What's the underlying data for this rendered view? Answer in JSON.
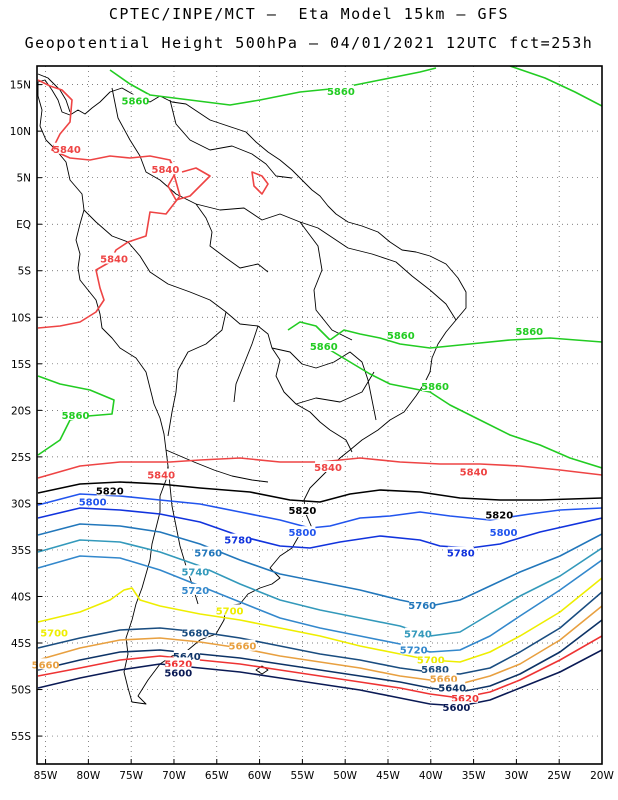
{
  "header": {
    "line1": "CPTEC/INPE/MCT –  Eta Model 15km – GFS",
    "line2": "Geopotential Height 500hPa – 04/01/2021 12UTC fct=253h"
  },
  "map": {
    "lon_range": [
      -86,
      -20
    ],
    "lat_range": [
      -58,
      17
    ],
    "lat_ticks": [
      "15N",
      "10N",
      "5N",
      "EQ",
      "5S",
      "10S",
      "15S",
      "20S",
      "25S",
      "30S",
      "35S",
      "40S",
      "45S",
      "50S",
      "55S"
    ],
    "lon_ticks": [
      "85W",
      "80W",
      "75W",
      "70W",
      "65W",
      "60W",
      "55W",
      "50W",
      "45W",
      "40W",
      "35W",
      "30W",
      "25W",
      "20W"
    ],
    "grid": "dotted",
    "contour_colors": {
      "5860": "#22cc22",
      "5840": "#ee4444",
      "5820": "#000000",
      "5800": "#2255ee",
      "5780": "#1133dd",
      "5760": "#2277bb",
      "5740": "#3399bb",
      "5720": "#3388cc",
      "5700": "#eeee00",
      "5680": "#1a4d80",
      "5660": "#e8a040",
      "5640": "#0d3366",
      "5620": "#ee3333",
      "5600": "#0a1a55"
    },
    "contour_labels": [
      {
        "text": "5860",
        "lon": -74.5,
        "lat": 13.2,
        "level": "5860"
      },
      {
        "text": "5860",
        "lon": -50.5,
        "lat": 14.2,
        "level": "5860"
      },
      {
        "text": "5860",
        "lon": -52.5,
        "lat": -13.2,
        "level": "5860"
      },
      {
        "text": "5860",
        "lon": -43.5,
        "lat": -12.0,
        "level": "5860"
      },
      {
        "text": "5860",
        "lon": -28.5,
        "lat": -11.6,
        "level": "5860"
      },
      {
        "text": "5860",
        "lon": -39.5,
        "lat": -17.5,
        "level": "5860"
      },
      {
        "text": "5860",
        "lon": -81.5,
        "lat": -20.6,
        "level": "5860"
      },
      {
        "text": "5840",
        "lon": -82.5,
        "lat": 8.0,
        "level": "5840"
      },
      {
        "text": "5840",
        "lon": -71.0,
        "lat": 5.8,
        "level": "5840"
      },
      {
        "text": "5840",
        "lon": -77.0,
        "lat": -3.8,
        "level": "5840"
      },
      {
        "text": "5840",
        "lon": -71.5,
        "lat": -27.0,
        "level": "5840"
      },
      {
        "text": "5840",
        "lon": -52.0,
        "lat": -26.2,
        "level": "5840"
      },
      {
        "text": "5840",
        "lon": -35.0,
        "lat": -26.7,
        "level": "5840"
      },
      {
        "text": "5820",
        "lon": -77.5,
        "lat": -28.7,
        "level": "5820"
      },
      {
        "text": "5820",
        "lon": -55.0,
        "lat": -30.8,
        "level": "5820"
      },
      {
        "text": "5820",
        "lon": -32.0,
        "lat": -31.3,
        "level": "5820"
      },
      {
        "text": "5800",
        "lon": -79.5,
        "lat": -29.9,
        "level": "5800"
      },
      {
        "text": "5800",
        "lon": -55.0,
        "lat": -33.2,
        "level": "5800"
      },
      {
        "text": "5800",
        "lon": -31.5,
        "lat": -33.2,
        "level": "5800"
      },
      {
        "text": "5780",
        "lon": -62.5,
        "lat": -34.0,
        "level": "5780"
      },
      {
        "text": "5780",
        "lon": -36.5,
        "lat": -35.4,
        "level": "5780"
      },
      {
        "text": "5760",
        "lon": -66.0,
        "lat": -35.4,
        "level": "5760"
      },
      {
        "text": "5760",
        "lon": -41.0,
        "lat": -41.0,
        "level": "5760"
      },
      {
        "text": "5740",
        "lon": -67.5,
        "lat": -37.4,
        "level": "5740"
      },
      {
        "text": "5740",
        "lon": -41.5,
        "lat": -44.1,
        "level": "5740"
      },
      {
        "text": "5720",
        "lon": -67.5,
        "lat": -39.4,
        "level": "5720"
      },
      {
        "text": "5720",
        "lon": -42.0,
        "lat": -45.8,
        "level": "5720"
      },
      {
        "text": "5700",
        "lon": -63.5,
        "lat": -41.6,
        "level": "5700"
      },
      {
        "text": "5700",
        "lon": -84.0,
        "lat": -44.0,
        "level": "5700"
      },
      {
        "text": "5700",
        "lon": -40.0,
        "lat": -46.9,
        "level": "5700"
      },
      {
        "text": "5680",
        "lon": -67.5,
        "lat": -44.0,
        "level": "5680"
      },
      {
        "text": "5680",
        "lon": -39.5,
        "lat": -47.9,
        "level": "5680"
      },
      {
        "text": "5660",
        "lon": -62.0,
        "lat": -45.4,
        "level": "5660"
      },
      {
        "text": "5660",
        "lon": -85.0,
        "lat": -47.4,
        "level": "5660"
      },
      {
        "text": "5660",
        "lon": -38.5,
        "lat": -48.9,
        "level": "5660"
      },
      {
        "text": "5640",
        "lon": -68.5,
        "lat": -46.5,
        "level": "5640"
      },
      {
        "text": "5640",
        "lon": -37.5,
        "lat": -49.9,
        "level": "5640"
      },
      {
        "text": "5620",
        "lon": -69.5,
        "lat": -47.3,
        "level": "5620"
      },
      {
        "text": "5620",
        "lon": -36.0,
        "lat": -51.0,
        "level": "5620"
      },
      {
        "text": "5600",
        "lon": -69.5,
        "lat": -48.3,
        "level": "5600"
      },
      {
        "text": "5600",
        "lon": -37.0,
        "lat": -52.0,
        "level": "5600"
      }
    ]
  }
}
